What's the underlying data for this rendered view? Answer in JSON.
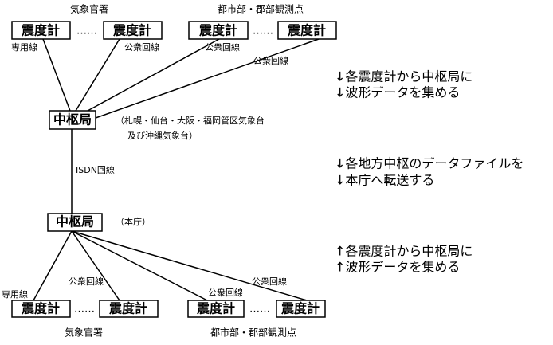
{
  "top": {
    "groups": [
      "気象官署",
      "都市部・郡部観測点"
    ],
    "devices": [
      "震度計",
      "震度計",
      "震度計",
      "震度計"
    ],
    "separators": [
      "……",
      "……"
    ],
    "lines": [
      "専用線",
      "公衆回線",
      "公衆回線",
      "公衆回線"
    ]
  },
  "regional_hub": {
    "label": "中枢局",
    "note": [
      "（札幌・仙台・大阪・福岡管区気象台",
      "及び沖縄気象台）"
    ]
  },
  "link": "ISDN回線",
  "hq": {
    "label": "中枢局",
    "note": "（本庁）"
  },
  "bottom": {
    "groups": [
      "気象官署",
      "都市部・郡部観測点"
    ],
    "devices": [
      "震度計",
      "震度計",
      "震度計",
      "震度計"
    ],
    "separators": [
      "……",
      "……"
    ],
    "lines": [
      "専用線",
      "公衆回線",
      "公衆回線",
      "公衆回線"
    ]
  },
  "steps": [
    [
      "↓各震度計から中枢局に",
      "↓波形データを集める"
    ],
    [
      "↓各地方中枢のデータファイルを",
      "↓本庁へ転送する"
    ],
    [
      "↑各震度計から中枢局に",
      "↑波形データを集める"
    ]
  ]
}
